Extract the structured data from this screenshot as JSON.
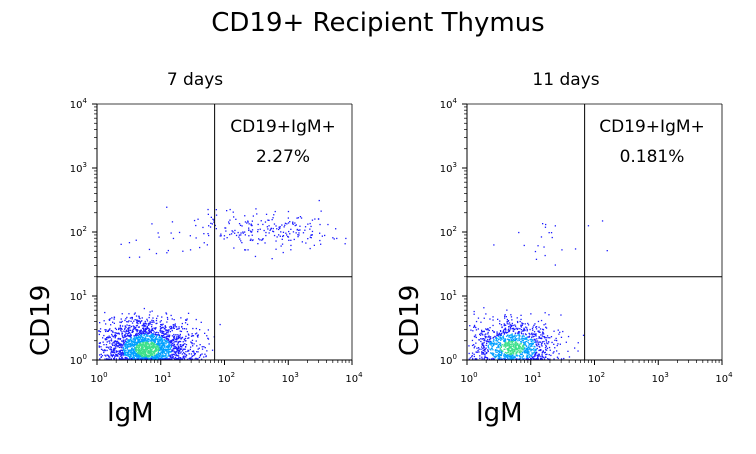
{
  "figure_title": "CD19+ Recipient Thymus",
  "chart_data": [
    {
      "type": "scatter",
      "title": "7 days",
      "xlabel": "IgM",
      "ylabel": "CD19",
      "xscale": "log",
      "yscale": "log",
      "xlim": [
        1,
        10000
      ],
      "ylim": [
        1,
        10000
      ],
      "x_ticks": [
        "10^0",
        "10^1",
        "10^2",
        "10^3",
        "10^4"
      ],
      "y_ticks": [
        "10^0",
        "10^1",
        "10^2",
        "10^3",
        "10^4"
      ],
      "gate": {
        "x": 70,
        "y": 20
      },
      "quadrant_label": "CD19+IgM+",
      "quadrant_value": "2.27%",
      "clusters": [
        {
          "population": "CD19-IgM-",
          "center_x": 6,
          "center_y": 1.5,
          "spread_x_decades": 0.35,
          "spread_y_decades": 0.22,
          "density": "high"
        },
        {
          "population": "CD19+IgM+",
          "center_x": 400,
          "center_y": 110,
          "spread_x_decades": 0.55,
          "spread_y_decades": 0.15,
          "density": "low"
        },
        {
          "population": "CD19+IgM-",
          "center_x": 15,
          "center_y": 70,
          "spread_x_decades": 0.4,
          "spread_y_decades": 0.2,
          "density": "very low"
        }
      ],
      "colors": {
        "density_low": "#1a1aff",
        "density_mid": "#00a0ff",
        "density_high": "#3de08a",
        "gate_line": "#000000"
      }
    },
    {
      "type": "scatter",
      "title": "11 days",
      "xlabel": "IgM",
      "ylabel": "CD19",
      "xscale": "log",
      "yscale": "log",
      "xlim": [
        1,
        10000
      ],
      "ylim": [
        1,
        10000
      ],
      "x_ticks": [
        "10^0",
        "10^1",
        "10^2",
        "10^3",
        "10^4"
      ],
      "y_ticks": [
        "10^0",
        "10^1",
        "10^2",
        "10^3",
        "10^4"
      ],
      "gate": {
        "x": 70,
        "y": 20
      },
      "quadrant_label": "CD19+IgM+",
      "quadrant_value": "0.181%",
      "clusters": [
        {
          "population": "CD19-IgM-",
          "center_x": 5,
          "center_y": 1.6,
          "spread_x_decades": 0.35,
          "spread_y_decades": 0.2,
          "density": "medium"
        },
        {
          "population": "CD19+IgM-",
          "center_x": 15,
          "center_y": 80,
          "spread_x_decades": 0.45,
          "spread_y_decades": 0.2,
          "density": "very low"
        }
      ],
      "colors": {
        "density_low": "#1a1aff",
        "density_mid": "#00a0ff",
        "density_high": "#3de08a",
        "gate_line": "#000000"
      }
    }
  ]
}
